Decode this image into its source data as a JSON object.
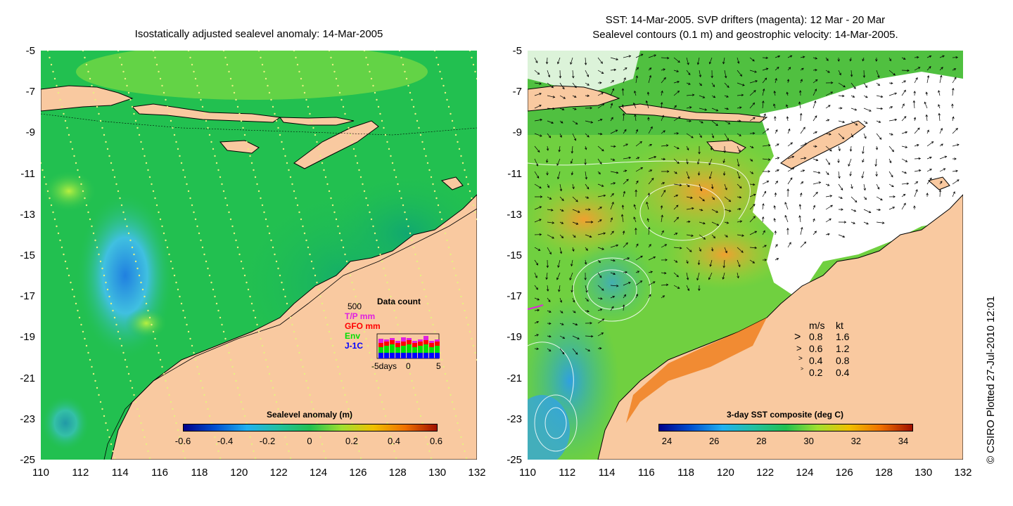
{
  "left_panel": {
    "title": "Isostatically adjusted sealevel anomaly: 14-Mar-2005",
    "y_ticks": [
      "-5",
      "-7",
      "-9",
      "-11",
      "-13",
      "-15",
      "-17",
      "-19",
      "-21",
      "-23",
      "-25"
    ],
    "x_ticks": [
      "110",
      "112",
      "114",
      "116",
      "118",
      "120",
      "122",
      "124",
      "126",
      "128",
      "130",
      "132"
    ],
    "colorbar": {
      "title": "Sealevel anomaly (m)",
      "ticks": [
        "-0.6",
        "-0.4",
        "-0.2",
        "0",
        "0.2",
        "0.4",
        "0.6"
      ]
    },
    "data_count": {
      "title": "Data count",
      "scale": "500",
      "series": [
        {
          "name": "T/P mm",
          "color": "#e020e0"
        },
        {
          "name": "GFO mm",
          "color": "#ff0000"
        },
        {
          "name": "Env",
          "color": "#00e000"
        },
        {
          "name": "J-1C",
          "color": "#0000ff"
        }
      ],
      "x_labels": [
        "-5days",
        "0",
        "5"
      ]
    }
  },
  "right_panel": {
    "title_line1": "SST: 14-Mar-2005. SVP drifters (magenta): 12 Mar - 20 Mar",
    "title_line2": "Sealevel contours (0.1 m) and geostrophic velocity: 14-Mar-2005.",
    "y_ticks": [
      "-5",
      "-7",
      "-9",
      "-11",
      "-13",
      "-15",
      "-17",
      "-19",
      "-21",
      "-23",
      "-25"
    ],
    "x_ticks": [
      "110",
      "112",
      "114",
      "116",
      "118",
      "120",
      "122",
      "124",
      "126",
      "128",
      "130",
      "132"
    ],
    "colorbar": {
      "title": "3-day SST composite (deg C)",
      "ticks": [
        "24",
        "26",
        "28",
        "30",
        "32",
        "34"
      ]
    },
    "velocity_legend": {
      "header_ms": "m/s",
      "header_kt": "kt",
      "rows": [
        {
          "ms": "0.8",
          "kt": "1.6"
        },
        {
          "ms": "0.6",
          "kt": "1.2"
        },
        {
          "ms": "0.4",
          "kt": "0.8"
        },
        {
          "ms": "0.2",
          "kt": "0.4"
        }
      ]
    }
  },
  "copyright": "© CSIRO Plotted 27-Jul-2010 12:01",
  "colors": {
    "land": "#f9c9a0",
    "sea_green": "#22c050",
    "sea_dark": "#10a860",
    "sea_light": "#90e040",
    "sea_blue": "#30a0f0"
  }
}
